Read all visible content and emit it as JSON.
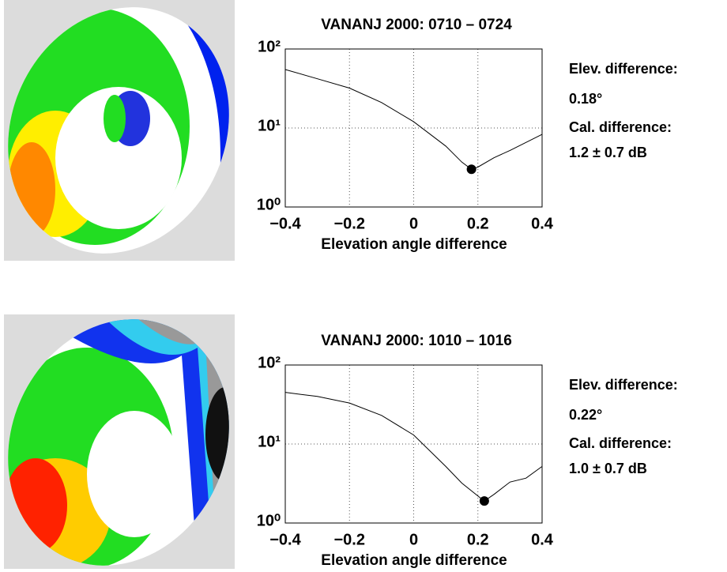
{
  "chart_data": [
    {
      "type": "line",
      "title": "VANANJ  2000: 0710 – 0724",
      "x_label": "Elevation angle difference",
      "x": [
        -0.4,
        -0.3,
        -0.2,
        -0.1,
        0,
        0.1,
        0.15,
        0.18,
        0.2,
        0.25,
        0.3,
        0.4
      ],
      "series": [
        {
          "color": "#000000",
          "values": [
            55,
            42,
            32,
            21,
            12,
            5.9,
            3.7,
            3.0,
            3.2,
            4.2,
            5.2,
            8.3
          ]
        }
      ],
      "minimum": {
        "x": 0.18,
        "y": 3.0
      },
      "xlim": [
        -0.4,
        0.4
      ],
      "xticks": [
        {
          "value": -0.4,
          "label": "−0.4"
        },
        {
          "value": -0.2,
          "label": "−0.2"
        },
        0,
        0.2,
        0.4
      ],
      "ylim": [
        1,
        100
      ],
      "yticks": [
        {
          "value": 1,
          "label": "10⁰"
        },
        {
          "value": 10,
          "label": "10¹"
        },
        {
          "value": 100,
          "label": "10²"
        }
      ],
      "log_y": true,
      "grid": true,
      "annotations": [
        "Elev. difference:",
        "0.18°",
        "Cal. difference:",
        "1.2 ± 0.7 dB"
      ]
    },
    {
      "type": "line",
      "title": "VANANJ  2000: 1010 – 1016",
      "x_label": "Elevation angle difference",
      "x": [
        -0.4,
        -0.3,
        -0.2,
        -0.1,
        0,
        0.1,
        0.15,
        0.2,
        0.22,
        0.25,
        0.3,
        0.35,
        0.4
      ],
      "series": [
        {
          "color": "#000000",
          "values": [
            45,
            40,
            33,
            23,
            13,
            5.2,
            3.2,
            2.2,
            1.9,
            2.3,
            3.3,
            3.7,
            5.2
          ]
        }
      ],
      "minimum": {
        "x": 0.22,
        "y": 1.9
      },
      "xlim": [
        -0.4,
        0.4
      ],
      "xticks": [
        {
          "value": -0.4,
          "label": "−0.4"
        },
        {
          "value": -0.2,
          "label": "−0.2"
        },
        0,
        0.2,
        0.4
      ],
      "ylim": [
        1,
        100
      ],
      "yticks": [
        {
          "value": 1,
          "label": "10⁰"
        },
        {
          "value": 10,
          "label": "10¹"
        },
        {
          "value": 100,
          "label": "10²"
        }
      ],
      "log_y": true,
      "grid": true,
      "annotations": [
        "Elev. difference:",
        "0.22°",
        "Cal. difference:",
        "1.0 ± 0.7 dB"
      ]
    }
  ]
}
